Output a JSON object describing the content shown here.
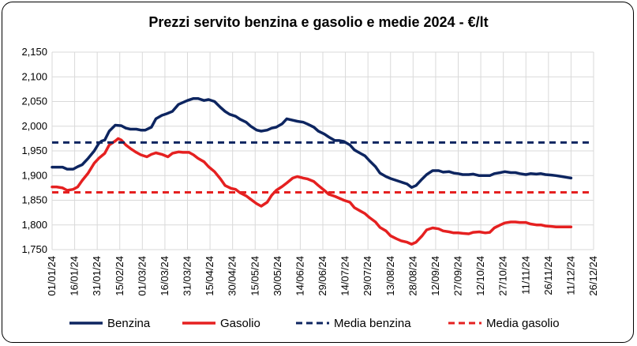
{
  "chart_data": {
    "type": "line",
    "title": "Prezzi servito benzina e gasolio e medie 2024 - €/lt",
    "xlabel": "",
    "ylabel": "",
    "ylim": [
      1.75,
      2.15
    ],
    "y_ticks": [
      "1,750",
      "1,800",
      "1,850",
      "1,900",
      "1,950",
      "2,000",
      "2,050",
      "2,100",
      "2,150"
    ],
    "y_tick_values": [
      1.75,
      1.8,
      1.85,
      1.9,
      1.95,
      2.0,
      2.05,
      2.1,
      2.15
    ],
    "x_ticks": [
      "01/01/24",
      "16/01/24",
      "31/01/24",
      "15/02/24",
      "01/03/24",
      "16/03/24",
      "31/03/24",
      "15/04/24",
      "30/04/24",
      "15/05/24",
      "30/05/24",
      "14/06/24",
      "29/06/24",
      "14/07/24",
      "29/07/24",
      "13/08/24",
      "28/08/24",
      "12/09/24",
      "27/09/24",
      "12/10/24",
      "27/10/24",
      "11/11/24",
      "26/11/24",
      "11/12/24",
      "26/12/24"
    ],
    "grid": true,
    "legend_position": "bottom",
    "series": [
      {
        "name": "Benzina",
        "color": "#0d2560",
        "style": "solid",
        "x": [
          0,
          4,
          7,
          10,
          14,
          17,
          20,
          24,
          28,
          31,
          33,
          35,
          38,
          42,
          46,
          49,
          52,
          56,
          59,
          62,
          66,
          69,
          73,
          76,
          80,
          84,
          87,
          90,
          94,
          97,
          101,
          104,
          108,
          112,
          115,
          118,
          122,
          125,
          129,
          132,
          136,
          139,
          143,
          146,
          149,
          153,
          156,
          160,
          163,
          167,
          170,
          174,
          177,
          181,
          184,
          188,
          191,
          194,
          198,
          201,
          205,
          208,
          211,
          215,
          218,
          222,
          225,
          229,
          232,
          236,
          239,
          242,
          246,
          249,
          253,
          257,
          260,
          264,
          267,
          270,
          273,
          277,
          280,
          284,
          288,
          291,
          294,
          298,
          301,
          305,
          308,
          311,
          315,
          318,
          322,
          325,
          328,
          332,
          335,
          339,
          343,
          345
        ],
        "values": [
          1.917,
          1.917,
          1.917,
          1.913,
          1.913,
          1.918,
          1.922,
          1.935,
          1.95,
          1.965,
          1.97,
          1.972,
          1.99,
          2.002,
          2.001,
          1.996,
          1.994,
          1.994,
          1.992,
          1.992,
          1.998,
          2.015,
          2.022,
          2.025,
          2.03,
          2.044,
          2.048,
          2.052,
          2.056,
          2.056,
          2.052,
          2.054,
          2.05,
          2.038,
          2.03,
          2.024,
          2.02,
          2.014,
          2.008,
          2.0,
          1.992,
          1.99,
          1.992,
          1.996,
          1.998,
          2.005,
          2.015,
          2.012,
          2.01,
          2.008,
          2.004,
          1.998,
          1.99,
          1.984,
          1.978,
          1.971,
          1.971,
          1.969,
          1.962,
          1.952,
          1.945,
          1.94,
          1.93,
          1.918,
          1.905,
          1.898,
          1.894,
          1.89,
          1.887,
          1.883,
          1.876,
          1.88,
          1.893,
          1.902,
          1.91,
          1.91,
          1.907,
          1.908,
          1.905,
          1.904,
          1.902,
          1.902,
          1.903,
          1.9,
          1.9,
          1.9,
          1.904,
          1.906,
          1.908,
          1.906,
          1.906,
          1.904,
          1.902,
          1.904,
          1.903,
          1.904,
          1.902,
          1.901,
          1.9,
          1.898,
          1.896,
          1.895
        ]
      },
      {
        "name": "Gasolio",
        "color": "#e52020",
        "style": "solid",
        "x": [
          0,
          3,
          7,
          10,
          14,
          17,
          20,
          24,
          28,
          31,
          35,
          38,
          42,
          44,
          46,
          49,
          52,
          56,
          59,
          63,
          66,
          69,
          73,
          77,
          80,
          84,
          87,
          91,
          94,
          97,
          101,
          104,
          108,
          112,
          115,
          119,
          122,
          125,
          129,
          132,
          136,
          139,
          143,
          146,
          149,
          153,
          156,
          160,
          163,
          167,
          170,
          174,
          177,
          181,
          184,
          188,
          191,
          194,
          198,
          201,
          205,
          208,
          211,
          215,
          218,
          222,
          225,
          229,
          232,
          236,
          239,
          242,
          246,
          249,
          253,
          257,
          260,
          264,
          267,
          270,
          273,
          277,
          280,
          284,
          288,
          291,
          294,
          298,
          301,
          305,
          308,
          311,
          315,
          318,
          322,
          325,
          328,
          332,
          335,
          339,
          343,
          345
        ],
        "values": [
          1.877,
          1.877,
          1.875,
          1.87,
          1.872,
          1.877,
          1.89,
          1.905,
          1.925,
          1.935,
          1.945,
          1.962,
          1.97,
          1.975,
          1.972,
          1.962,
          1.955,
          1.947,
          1.942,
          1.938,
          1.943,
          1.946,
          1.943,
          1.938,
          1.945,
          1.948,
          1.947,
          1.947,
          1.942,
          1.935,
          1.928,
          1.918,
          1.908,
          1.893,
          1.88,
          1.874,
          1.872,
          1.865,
          1.859,
          1.852,
          1.843,
          1.838,
          1.846,
          1.86,
          1.87,
          1.878,
          1.885,
          1.895,
          1.898,
          1.895,
          1.893,
          1.888,
          1.88,
          1.87,
          1.862,
          1.858,
          1.854,
          1.85,
          1.846,
          1.835,
          1.828,
          1.823,
          1.815,
          1.806,
          1.795,
          1.788,
          1.778,
          1.772,
          1.768,
          1.765,
          1.761,
          1.765,
          1.778,
          1.79,
          1.794,
          1.792,
          1.788,
          1.786,
          1.784,
          1.784,
          1.783,
          1.782,
          1.785,
          1.786,
          1.784,
          1.785,
          1.794,
          1.8,
          1.804,
          1.806,
          1.806,
          1.805,
          1.805,
          1.802,
          1.8,
          1.8,
          1.798,
          1.797,
          1.796,
          1.796,
          1.796,
          1.796
        ]
      },
      {
        "name": "Media benzina",
        "color": "#0d2560",
        "style": "dashed",
        "x": [
          0,
          359
        ],
        "values": [
          1.967,
          1.967
        ]
      },
      {
        "name": "Media gasolio",
        "color": "#e52020",
        "style": "dashed",
        "x": [
          0,
          359
        ],
        "values": [
          1.866,
          1.866
        ]
      }
    ]
  }
}
